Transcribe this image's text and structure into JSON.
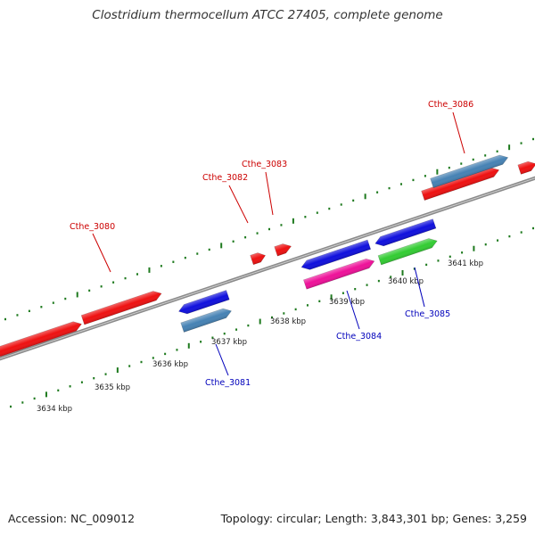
{
  "title": "Clostridium thermocellum ATCC 27405, complete genome",
  "footer": {
    "accession": "Accession: NC_009012",
    "summary": "Topology: circular; Length: 3,843,301 bp; Genes: 3,259"
  },
  "colors": {
    "backbone": "#8a8a8a",
    "tick": "#1e7a1e",
    "plus_label": "#cc0000",
    "minus_label": "#0000bb",
    "red": "#ee1111",
    "blue": "#1010dd",
    "steelblue": "#4682b4",
    "magenta": "#ee1199",
    "green": "#33cc33"
  },
  "scale": {
    "unit": "kbp",
    "major_ticks": [
      3634,
      3635,
      3636,
      3637,
      3638,
      3639,
      3640,
      3641
    ]
  },
  "gene_labels": [
    {
      "id": "Cthe_3080",
      "strand": "plus"
    },
    {
      "id": "Cthe_3081",
      "strand": "minus"
    },
    {
      "id": "Cthe_3082",
      "strand": "plus"
    },
    {
      "id": "Cthe_3083",
      "strand": "plus"
    },
    {
      "id": "Cthe_3084",
      "strand": "minus"
    },
    {
      "id": "Cthe_3085",
      "strand": "minus"
    },
    {
      "id": "Cthe_3086",
      "strand": "plus"
    }
  ]
}
